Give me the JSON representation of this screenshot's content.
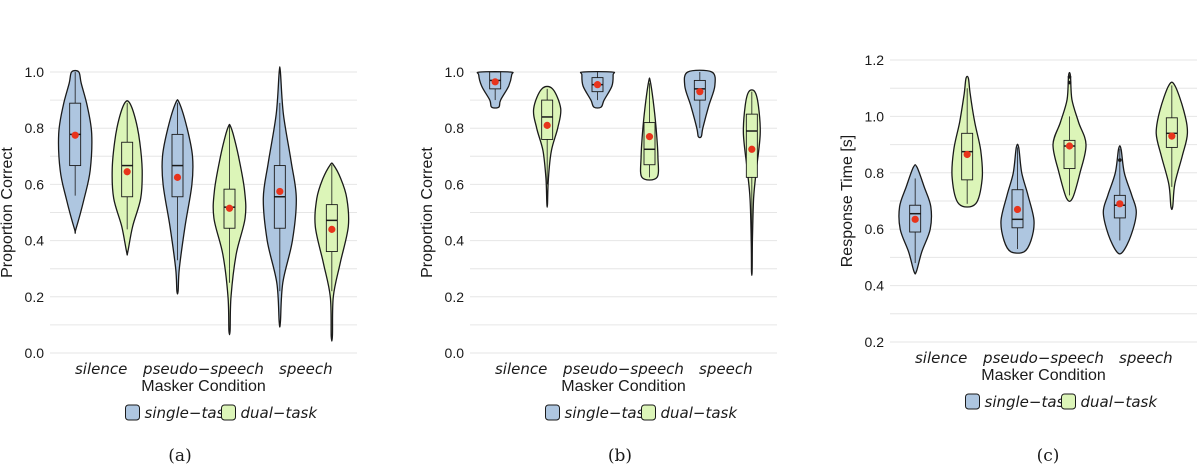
{
  "colors": {
    "single": "#aec6e0",
    "dual": "#dcf5b8",
    "mean": "#e8341c",
    "grid": "#e6e6e6",
    "stroke": "#1a1a1a"
  },
  "chart_data": [
    {
      "type": "violin",
      "caption": "(a)",
      "ylabel": "Proportion Correct",
      "xlabel": "Masker Condition",
      "ylim": [
        0.0,
        1.0
      ],
      "yticks": [
        0.0,
        0.2,
        0.4,
        0.6,
        0.8,
        1.0
      ],
      "ytick_labels": [
        "0.0",
        "0.2",
        "0.4",
        "0.6",
        "0.8",
        "1.0"
      ],
      "grid": true,
      "legend": "bottom",
      "categories": [
        "silence",
        "pseudo−speech",
        "speech"
      ],
      "series": [
        {
          "name": "single−task",
          "groups": [
            {
              "min": 0.44,
              "max": 1.0,
              "q1": 0.667,
              "median": 0.778,
              "q3": 0.889,
              "wlo": 0.56,
              "whi": 1.0,
              "mean": 0.775,
              "profile": [
                [
                  0.44,
                  0.02
                ],
                [
                  0.55,
                  0.3
                ],
                [
                  0.65,
                  0.5
                ],
                [
                  0.78,
                  0.55
                ],
                [
                  0.88,
                  0.4
                ],
                [
                  0.96,
                  0.2
                ],
                [
                  1.0,
                  0.12
                ]
              ]
            },
            {
              "min": 0.22,
              "max": 0.89,
              "q1": 0.556,
              "median": 0.667,
              "q3": 0.778,
              "wlo": 0.33,
              "whi": 0.89,
              "mean": 0.625,
              "profile": [
                [
                  0.22,
                  0.02
                ],
                [
                  0.3,
                  0.06
                ],
                [
                  0.45,
                  0.25
                ],
                [
                  0.6,
                  0.48
                ],
                [
                  0.7,
                  0.5
                ],
                [
                  0.8,
                  0.32
                ],
                [
                  0.89,
                  0.06
                ]
              ]
            },
            {
              "min": 0.11,
              "max": 1.0,
              "q1": 0.444,
              "median": 0.556,
              "q3": 0.667,
              "wlo": 0.22,
              "whi": 0.89,
              "mean": 0.575,
              "profile": [
                [
                  0.11,
                  0.02
                ],
                [
                  0.25,
                  0.1
                ],
                [
                  0.4,
                  0.42
                ],
                [
                  0.55,
                  0.55
                ],
                [
                  0.68,
                  0.38
                ],
                [
                  0.85,
                  0.12
                ],
                [
                  1.0,
                  0.02
                ]
              ]
            }
          ]
        },
        {
          "name": "dual−task",
          "groups": [
            {
              "min": 0.36,
              "max": 0.89,
              "q1": 0.556,
              "median": 0.667,
              "q3": 0.75,
              "wlo": 0.44,
              "whi": 0.89,
              "mean": 0.645,
              "profile": [
                [
                  0.36,
                  0.02
                ],
                [
                  0.45,
                  0.18
                ],
                [
                  0.55,
                  0.45
                ],
                [
                  0.65,
                  0.5
                ],
                [
                  0.75,
                  0.42
                ],
                [
                  0.83,
                  0.28
                ],
                [
                  0.89,
                  0.08
                ]
              ]
            },
            {
              "min": 0.08,
              "max": 0.81,
              "q1": 0.444,
              "median": 0.519,
              "q3": 0.583,
              "wlo": 0.25,
              "whi": 0.81,
              "mean": 0.515,
              "profile": [
                [
                  0.08,
                  0.02
                ],
                [
                  0.2,
                  0.05
                ],
                [
                  0.35,
                  0.22
                ],
                [
                  0.48,
                  0.52
                ],
                [
                  0.58,
                  0.5
                ],
                [
                  0.7,
                  0.3
                ],
                [
                  0.78,
                  0.12
                ],
                [
                  0.81,
                  0.02
                ]
              ]
            },
            {
              "min": 0.06,
              "max": 0.67,
              "q1": 0.361,
              "median": 0.472,
              "q3": 0.528,
              "wlo": 0.22,
              "whi": 0.67,
              "mean": 0.44,
              "profile": [
                [
                  0.06,
                  0.02
                ],
                [
                  0.2,
                  0.05
                ],
                [
                  0.32,
                  0.28
                ],
                [
                  0.45,
                  0.55
                ],
                [
                  0.55,
                  0.5
                ],
                [
                  0.62,
                  0.3
                ],
                [
                  0.67,
                  0.05
                ]
              ]
            }
          ]
        }
      ]
    },
    {
      "type": "violin",
      "caption": "(b)",
      "ylabel": "Proportion Correct",
      "xlabel": "Masker Condition",
      "ylim": [
        0.0,
        1.0
      ],
      "yticks": [
        0.0,
        0.2,
        0.4,
        0.6,
        0.8,
        1.0
      ],
      "ytick_labels": [
        "0.0",
        "0.2",
        "0.4",
        "0.6",
        "0.8",
        "1.0"
      ],
      "grid": true,
      "legend": "bottom",
      "categories": [
        "silence",
        "pseudo−speech",
        "speech"
      ],
      "series": [
        {
          "name": "single−task",
          "groups": [
            {
              "min": 0.875,
              "max": 1.0,
              "q1": 0.94,
              "median": 0.97,
              "q3": 1.0,
              "wlo": 0.9,
              "whi": 1.0,
              "mean": 0.965,
              "profile": [
                [
                  0.875,
                  0.12
                ],
                [
                  0.9,
                  0.18
                ],
                [
                  0.95,
                  0.45
                ],
                [
                  0.99,
                  0.55
                ],
                [
                  1.0,
                  0.5
                ]
              ]
            },
            {
              "min": 0.875,
              "max": 1.0,
              "q1": 0.93,
              "median": 0.955,
              "q3": 0.98,
              "wlo": 0.9,
              "whi": 1.0,
              "mean": 0.955,
              "profile": [
                [
                  0.875,
                  0.12
                ],
                [
                  0.9,
                  0.22
                ],
                [
                  0.95,
                  0.48
                ],
                [
                  0.99,
                  0.52
                ],
                [
                  1.0,
                  0.48
                ]
              ]
            },
            {
              "min": 0.77,
              "max": 1.0,
              "q1": 0.9,
              "median": 0.94,
              "q3": 0.97,
              "wlo": 0.8,
              "whi": 1.0,
              "mean": 0.93,
              "profile": [
                [
                  0.77,
                  0.05
                ],
                [
                  0.8,
                  0.1
                ],
                [
                  0.88,
                  0.3
                ],
                [
                  0.95,
                  0.5
                ],
                [
                  1.0,
                  0.4
                ]
              ]
            }
          ]
        },
        {
          "name": "dual−task",
          "groups": [
            {
              "min": 0.53,
              "max": 0.94,
              "q1": 0.76,
              "median": 0.84,
              "q3": 0.9,
              "wlo": 0.6,
              "whi": 0.94,
              "mean": 0.81,
              "profile": [
                [
                  0.53,
                  0.01
                ],
                [
                  0.62,
                  0.04
                ],
                [
                  0.72,
                  0.14
                ],
                [
                  0.8,
                  0.35
                ],
                [
                  0.87,
                  0.45
                ],
                [
                  0.94,
                  0.18
                ]
              ]
            },
            {
              "min": 0.625,
              "max": 0.97,
              "q1": 0.67,
              "median": 0.725,
              "q3": 0.82,
              "wlo": 0.625,
              "whi": 0.96,
              "mean": 0.77,
              "profile": [
                [
                  0.625,
                  0.25
                ],
                [
                  0.7,
                  0.28
                ],
                [
                  0.8,
                  0.22
                ],
                [
                  0.9,
                  0.12
                ],
                [
                  0.97,
                  0.02
                ]
              ]
            },
            {
              "min": 0.29,
              "max": 0.93,
              "q1": 0.625,
              "median": 0.79,
              "q3": 0.85,
              "wlo": 0.4,
              "whi": 0.93,
              "mean": 0.725,
              "profile": [
                [
                  0.29,
                  0.01
                ],
                [
                  0.4,
                  0.02
                ],
                [
                  0.55,
                  0.06
                ],
                [
                  0.65,
                  0.15
                ],
                [
                  0.78,
                  0.28
                ],
                [
                  0.88,
                  0.22
                ],
                [
                  0.93,
                  0.1
                ]
              ]
            }
          ]
        }
      ]
    },
    {
      "type": "violin",
      "caption": "(c)",
      "ylabel": "Response Time [s]",
      "xlabel": "Masker Condition",
      "ylim": [
        0.2,
        1.2
      ],
      "yticks": [
        0.2,
        0.4,
        0.6,
        0.8,
        1.0,
        1.2
      ],
      "ytick_labels": [
        "0.2",
        "0.4",
        "0.6",
        "0.8",
        "1.0",
        "1.2"
      ],
      "grid": true,
      "legend": "bottom",
      "categories": [
        "silence",
        "pseudo−speech",
        "speech"
      ],
      "series": [
        {
          "name": "single−task",
          "groups": [
            {
              "min": 0.45,
              "max": 0.82,
              "q1": 0.59,
              "median": 0.655,
              "q3": 0.685,
              "wlo": 0.48,
              "whi": 0.78,
              "mean": 0.635,
              "profile": [
                [
                  0.45,
                  0.04
                ],
                [
                  0.52,
                  0.22
                ],
                [
                  0.6,
                  0.5
                ],
                [
                  0.68,
                  0.52
                ],
                [
                  0.75,
                  0.3
                ],
                [
                  0.82,
                  0.06
                ]
              ]
            },
            {
              "min": 0.52,
              "max": 0.89,
              "q1": 0.605,
              "median": 0.635,
              "q3": 0.74,
              "wlo": 0.53,
              "whi": 0.89,
              "mean": 0.67,
              "profile": [
                [
                  0.52,
                  0.22
                ],
                [
                  0.56,
                  0.45
                ],
                [
                  0.63,
                  0.55
                ],
                [
                  0.72,
                  0.35
                ],
                [
                  0.8,
                  0.14
                ],
                [
                  0.89,
                  0.04
                ]
              ]
            },
            {
              "min": 0.52,
              "max": 0.885,
              "q1": 0.64,
              "median": 0.685,
              "q3": 0.72,
              "wlo": 0.56,
              "whi": 0.885,
              "mean": 0.69,
              "outliers": [
                0.845
              ],
              "profile": [
                [
                  0.52,
                  0.1
                ],
                [
                  0.58,
                  0.38
                ],
                [
                  0.66,
                  0.55
                ],
                [
                  0.72,
                  0.4
                ],
                [
                  0.8,
                  0.15
                ],
                [
                  0.885,
                  0.04
                ]
              ]
            }
          ]
        },
        {
          "name": "dual−task",
          "groups": [
            {
              "min": 0.69,
              "max": 1.135,
              "q1": 0.775,
              "median": 0.875,
              "q3": 0.94,
              "wlo": 0.69,
              "whi": 1.1,
              "mean": 0.865,
              "profile": [
                [
                  0.69,
                  0.28
                ],
                [
                  0.78,
                  0.5
                ],
                [
                  0.88,
                  0.45
                ],
                [
                  0.98,
                  0.25
                ],
                [
                  1.08,
                  0.1
                ],
                [
                  1.135,
                  0.04
                ]
              ]
            },
            {
              "min": 0.71,
              "max": 1.145,
              "q1": 0.815,
              "median": 0.895,
              "q3": 0.915,
              "wlo": 0.72,
              "whi": 1.0,
              "mean": 0.895,
              "outliers": [
                1.12,
                1.14
              ],
              "profile": [
                [
                  0.71,
                  0.1
                ],
                [
                  0.8,
                  0.35
                ],
                [
                  0.9,
                  0.55
                ],
                [
                  0.98,
                  0.3
                ],
                [
                  1.06,
                  0.08
                ],
                [
                  1.145,
                  0.03
                ]
              ]
            },
            {
              "min": 0.68,
              "max": 1.11,
              "q1": 0.89,
              "median": 0.94,
              "q3": 0.995,
              "wlo": 0.75,
              "whi": 1.11,
              "mean": 0.93,
              "profile": [
                [
                  0.68,
                  0.03
                ],
                [
                  0.76,
                  0.1
                ],
                [
                  0.86,
                  0.35
                ],
                [
                  0.94,
                  0.52
                ],
                [
                  1.02,
                  0.4
                ],
                [
                  1.11,
                  0.1
                ]
              ]
            }
          ]
        }
      ]
    }
  ]
}
